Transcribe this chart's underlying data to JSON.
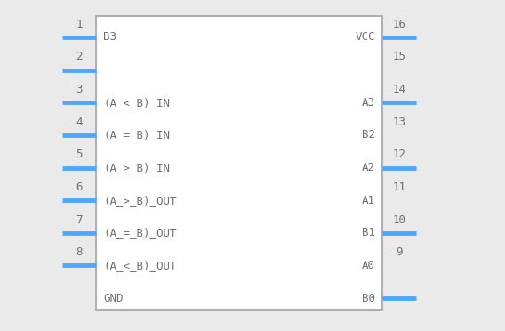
{
  "bg_color": "#eaeaea",
  "box_color": "#b0b0b0",
  "box_fill": "#ffffff",
  "pin_color": "#4da6ff",
  "text_color": "#707070",
  "num_color": "#707070",
  "fig_bg": "#eaeaea",
  "left_pins": [
    {
      "num": "1",
      "label": "B3",
      "has_line": true
    },
    {
      "num": "2",
      "label": "",
      "has_line": true
    },
    {
      "num": "3",
      "label": "(A_<_B)_IN",
      "has_line": true
    },
    {
      "num": "4",
      "label": "(A_=_B)_IN",
      "has_line": true
    },
    {
      "num": "5",
      "label": "(A_>_B)_IN",
      "has_line": true
    },
    {
      "num": "6",
      "label": "(A_>_B)_OUT",
      "has_line": true
    },
    {
      "num": "7",
      "label": "(A_=_B)_OUT",
      "has_line": true
    },
    {
      "num": "8",
      "label": "(A_<_B)_OUT",
      "has_line": true
    }
  ],
  "bottom_left_label": "GND",
  "right_pins": [
    {
      "num": "16",
      "label": "VCC",
      "has_line": true
    },
    {
      "num": "15",
      "label": "",
      "has_line": false
    },
    {
      "num": "14",
      "label": "A3",
      "has_line": true
    },
    {
      "num": "13",
      "label": "B2",
      "has_line": false
    },
    {
      "num": "12",
      "label": "A2",
      "has_line": true
    },
    {
      "num": "11",
      "label": "A1",
      "has_line": false
    },
    {
      "num": "10",
      "label": "B1",
      "has_line": true
    },
    {
      "num": "9",
      "label": "A0",
      "has_line": false
    }
  ],
  "bottom_right_label": "B0",
  "bottom_right_has_line": true,
  "font_size_label": 9,
  "font_size_num": 9,
  "font_family": "monospace"
}
